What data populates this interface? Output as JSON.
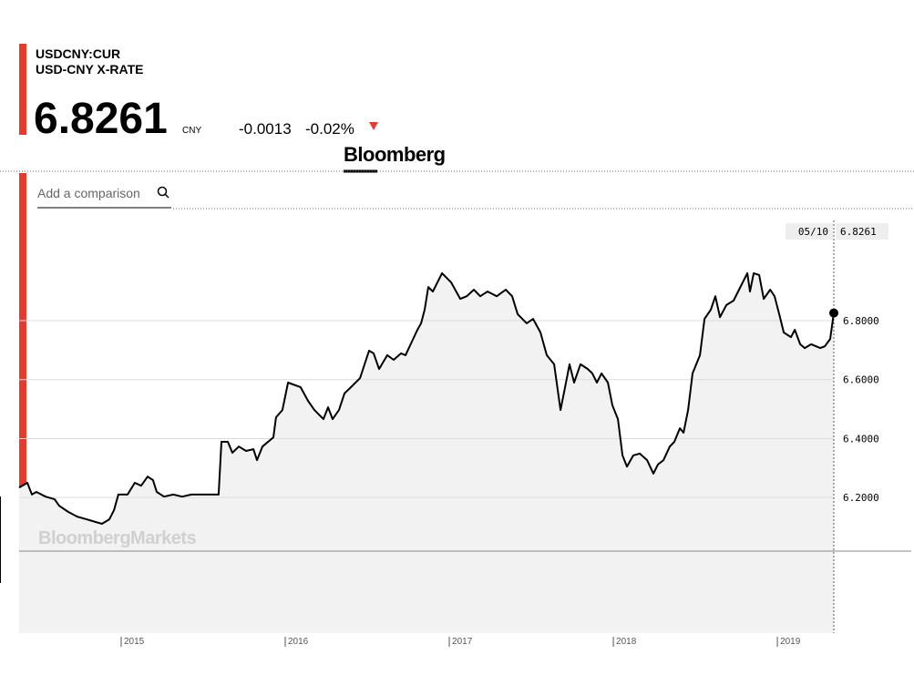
{
  "header": {
    "ticker": "USDCNY:CUR",
    "name": "USD-CNY X-RATE",
    "price": "6.8261",
    "currency": "CNY",
    "change": "-0.0013",
    "change_pct": "-0.02%",
    "brand": "Bloomberg",
    "search_placeholder": "Add a comparison"
  },
  "chart_data": {
    "type": "line",
    "watermark": "BloombergMarkets",
    "color": "#000000",
    "area_color": "#f2f2f2",
    "grid": true,
    "last_date_label": "05/10",
    "x": [
      2014.378,
      2014.428,
      2014.456,
      2014.483,
      2014.539,
      2014.594,
      2014.622,
      2014.678,
      2014.733,
      2014.789,
      2014.844,
      2014.883,
      2014.928,
      2014.956,
      2014.983,
      2015.039,
      2015.083,
      2015.122,
      2015.161,
      2015.194,
      2015.217,
      2015.261,
      2015.317,
      2015.372,
      2015.428,
      2015.594,
      2015.611,
      2015.65,
      2015.678,
      2015.717,
      2015.761,
      2015.806,
      2015.828,
      2015.861,
      2015.928,
      2015.944,
      2015.983,
      2016.017,
      2016.094,
      2016.139,
      2016.178,
      2016.233,
      2016.261,
      2016.289,
      2016.328,
      2016.361,
      2016.4,
      2016.456,
      2016.511,
      2016.539,
      2016.572,
      2016.622,
      2016.661,
      2016.706,
      2016.733,
      2016.772,
      2016.806,
      2016.828,
      2016.85,
      2016.872,
      2016.9,
      2016.956,
      2017.011,
      2017.067,
      2017.106,
      2017.15,
      2017.189,
      2017.233,
      2017.289,
      2017.344,
      2017.383,
      2017.417,
      2017.472,
      2017.511,
      2017.556,
      2017.594,
      2017.639,
      2017.678,
      2017.706,
      2017.733,
      2017.761,
      2017.8,
      2017.844,
      2017.872,
      2017.9,
      2017.928,
      2017.967,
      2017.994,
      2018.028,
      2018.056,
      2018.083,
      2018.122,
      2018.161,
      2018.206,
      2018.244,
      2018.272,
      2018.306,
      2018.344,
      2018.372,
      2018.406,
      2018.428,
      2018.456,
      2018.483,
      2018.528,
      2018.556,
      2018.594,
      2018.622,
      2018.65,
      2018.689,
      2018.733,
      2018.761,
      2018.817,
      2018.833,
      2018.856,
      2018.889,
      2018.917,
      2018.956,
      2018.983,
      2019.011,
      2019.039,
      2019.083,
      2019.106,
      2019.139,
      2019.167,
      2019.206,
      2019.261,
      2019.289,
      2019.322,
      2019.344
    ],
    "values": [
      6.234,
      6.25,
      6.21,
      6.219,
      6.203,
      6.194,
      6.172,
      6.151,
      6.135,
      6.126,
      6.117,
      6.111,
      6.126,
      6.157,
      6.21,
      6.21,
      6.25,
      6.24,
      6.271,
      6.259,
      6.219,
      6.203,
      6.21,
      6.203,
      6.21,
      6.21,
      6.389,
      6.389,
      6.352,
      6.373,
      6.358,
      6.364,
      6.327,
      6.373,
      6.404,
      6.472,
      6.497,
      6.59,
      6.574,
      6.528,
      6.497,
      6.466,
      6.506,
      6.466,
      6.497,
      6.553,
      6.574,
      6.605,
      6.698,
      6.689,
      6.636,
      6.683,
      6.667,
      6.689,
      6.683,
      6.729,
      6.769,
      6.791,
      6.837,
      6.914,
      6.899,
      6.961,
      6.93,
      6.874,
      6.883,
      6.905,
      6.883,
      6.899,
      6.883,
      6.905,
      6.883,
      6.822,
      6.791,
      6.806,
      6.76,
      6.683,
      6.652,
      6.497,
      6.574,
      6.652,
      6.59,
      6.652,
      6.636,
      6.621,
      6.59,
      6.621,
      6.59,
      6.513,
      6.466,
      6.343,
      6.305,
      6.343,
      6.349,
      6.327,
      6.281,
      6.312,
      6.327,
      6.373,
      6.389,
      6.435,
      6.42,
      6.497,
      6.621,
      6.683,
      6.806,
      6.837,
      6.883,
      6.812,
      6.853,
      6.868,
      6.899,
      6.961,
      6.899,
      6.961,
      6.955,
      6.874,
      6.905,
      6.883,
      6.822,
      6.76,
      6.744,
      6.769,
      6.72,
      6.707,
      6.72,
      6.707,
      6.713,
      6.738,
      6.8261
    ],
    "xlim": [
      2014.378,
      2019.344
    ],
    "xticks": [
      2015,
      2016,
      2017,
      2018,
      2019
    ],
    "ylim": [
      5.74,
      7.14
    ],
    "yticks": [
      {
        "value": 6.2,
        "label": "6.2000"
      },
      {
        "value": 6.4,
        "label": "6.4000"
      },
      {
        "value": 6.6,
        "label": "6.6000"
      },
      {
        "value": 6.8,
        "label": "6.8000"
      }
    ]
  }
}
